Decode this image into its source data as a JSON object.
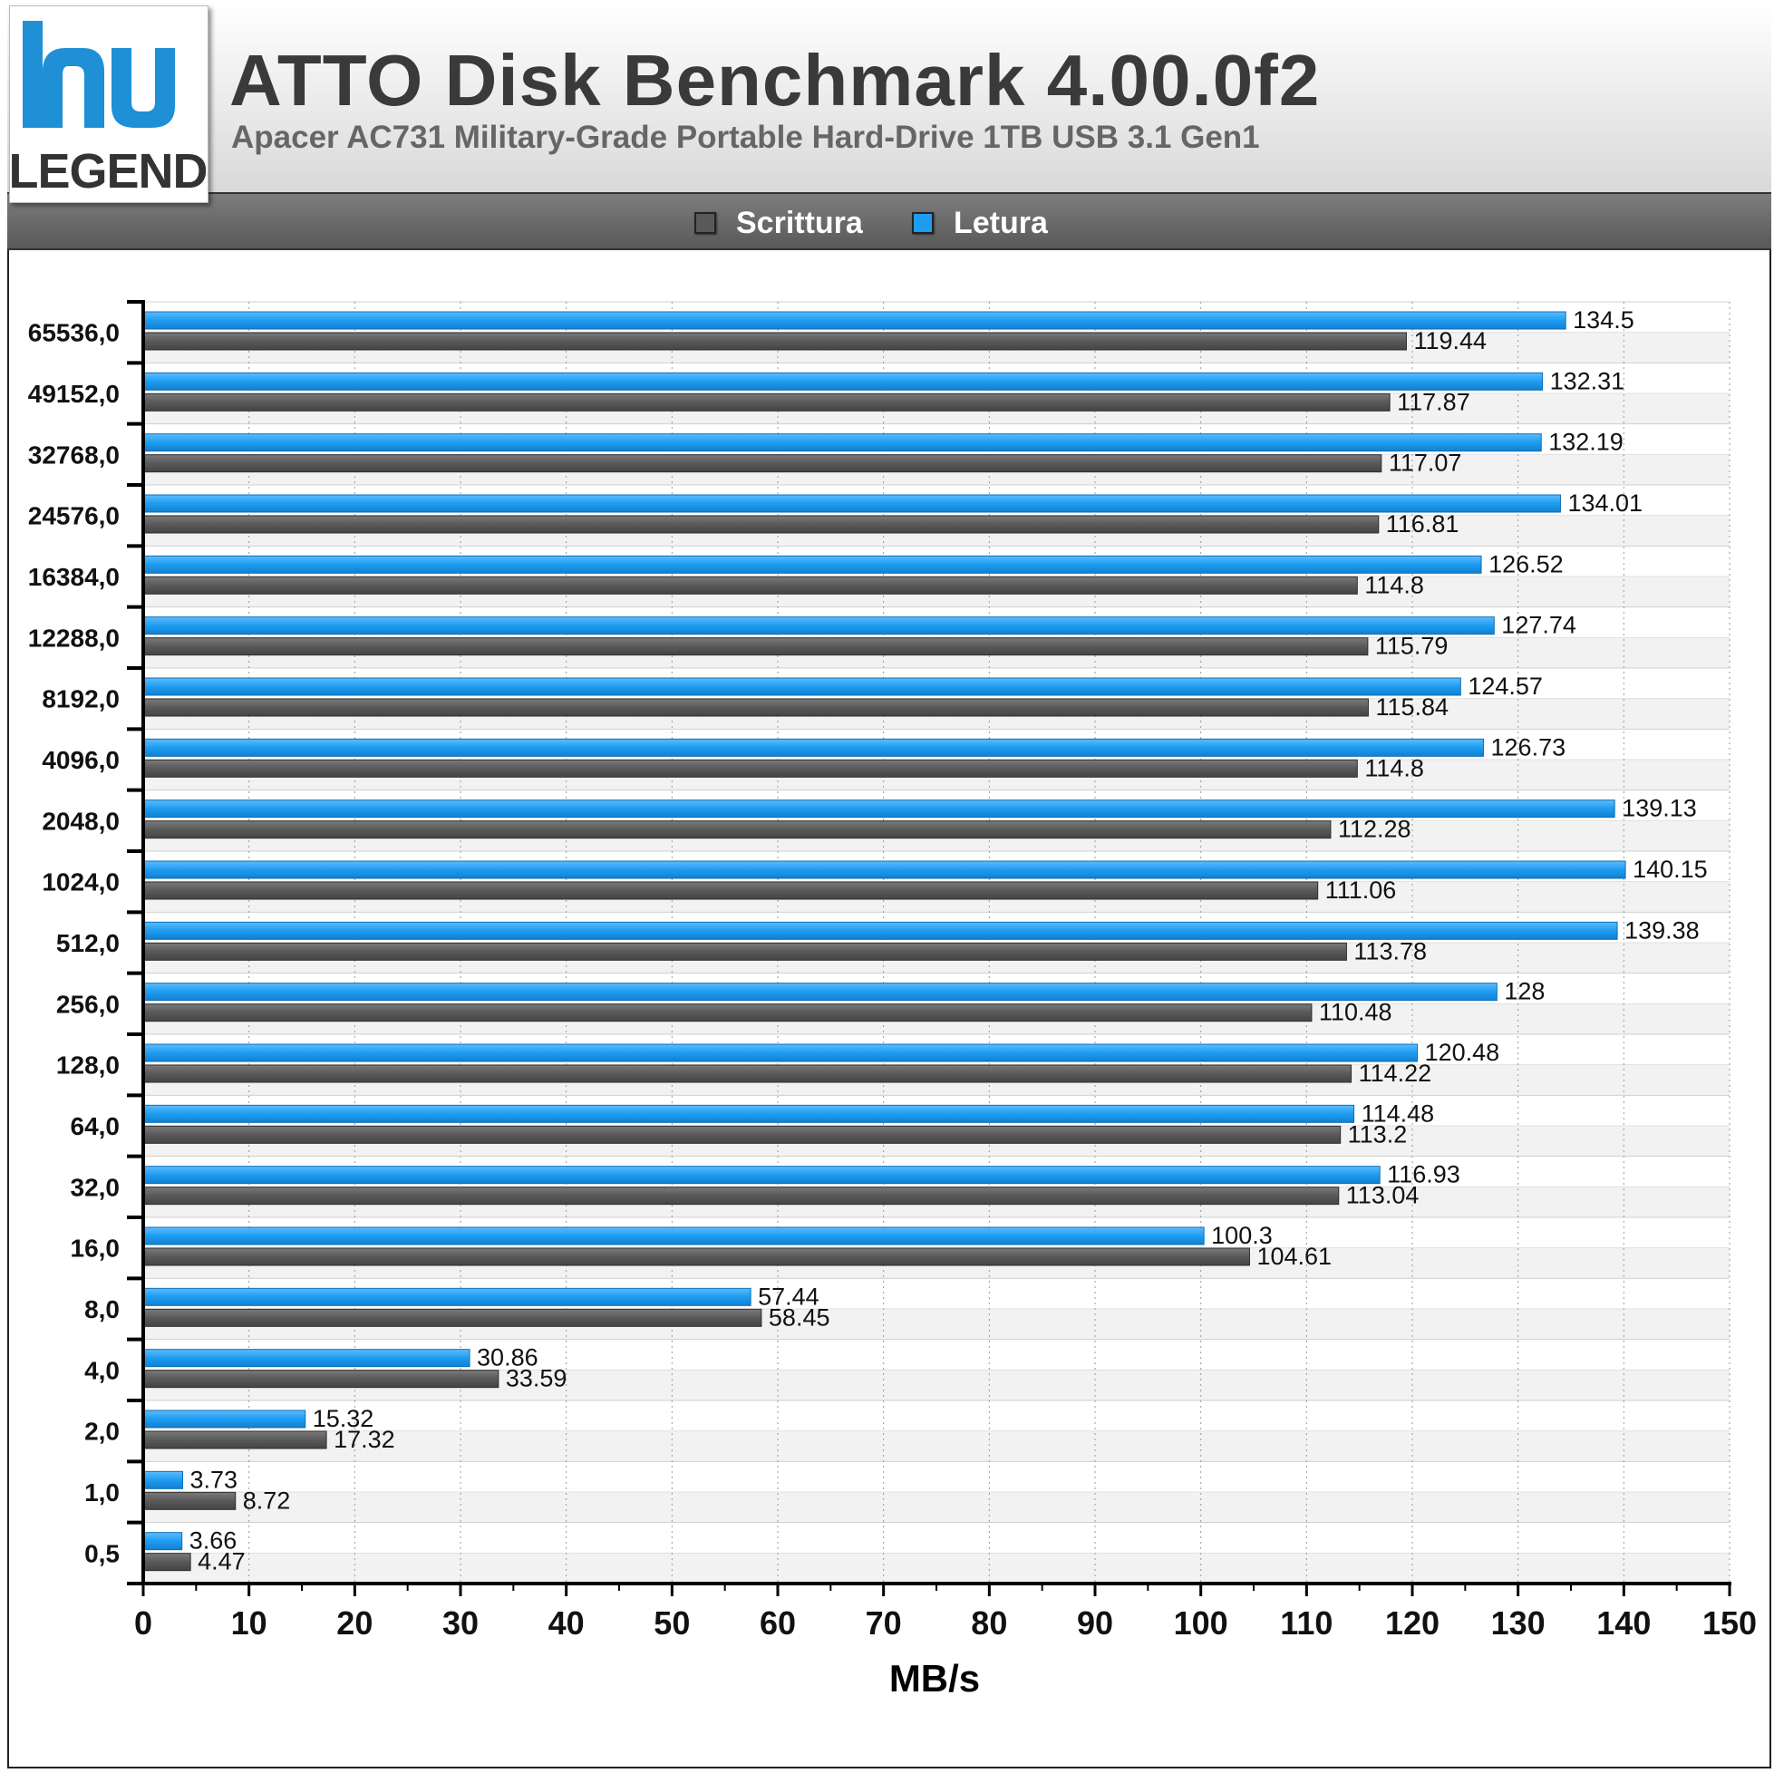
{
  "header": {
    "logo_text": "LEGEND",
    "title": "ATTO Disk Benchmark 4.00.0f2",
    "subtitle": "Apacer AC731 Military-Grade Portable Hard-Drive 1TB USB 3.1 Gen1"
  },
  "legend": {
    "items": [
      {
        "label": "Scrittura",
        "color": "#595959"
      },
      {
        "label": "Letura",
        "color": "#1e9cf0"
      }
    ]
  },
  "chart_data": {
    "type": "bar",
    "orientation": "horizontal",
    "categories": [
      "65536,0",
      "49152,0",
      "32768,0",
      "24576,0",
      "16384,0",
      "12288,0",
      "8192,0",
      "4096,0",
      "2048,0",
      "1024,0",
      "512,0",
      "256,0",
      "128,0",
      "64,0",
      "32,0",
      "16,0",
      "8,0",
      "4,0",
      "2,0",
      "1,0",
      "0,5"
    ],
    "series": [
      {
        "name": "Letura",
        "color": "#1e9cf0",
        "values": [
          134.5,
          132.31,
          132.19,
          134.01,
          126.52,
          127.74,
          124.57,
          126.73,
          139.13,
          140.15,
          139.38,
          128,
          120.48,
          114.48,
          116.93,
          100.3,
          57.44,
          30.86,
          15.32,
          3.73,
          3.66
        ]
      },
      {
        "name": "Scrittura",
        "color": "#595959",
        "values": [
          119.44,
          117.87,
          117.07,
          116.81,
          114.8,
          115.79,
          115.84,
          114.8,
          112.28,
          111.06,
          113.78,
          110.48,
          114.22,
          113.2,
          113.04,
          104.61,
          58.45,
          33.59,
          17.32,
          8.72,
          4.47
        ]
      }
    ],
    "xlabel": "MB/s",
    "ylabel": "",
    "xlim": [
      0,
      150
    ],
    "xticks": [
      0,
      10,
      20,
      30,
      40,
      50,
      60,
      70,
      80,
      90,
      100,
      110,
      120,
      130,
      140,
      150
    ],
    "grid": "vertical dotted",
    "legend_position": "top"
  }
}
